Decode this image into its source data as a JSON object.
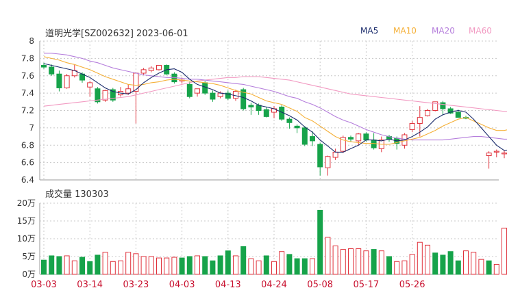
{
  "header": {
    "title": "道明光学[SZ002632] 2023-06-01"
  },
  "legend": [
    {
      "label": "MA5",
      "color": "#1a2b6b"
    },
    {
      "label": "MA10",
      "color": "#f5b038"
    },
    {
      "label": "MA20",
      "color": "#b57edc"
    },
    {
      "label": "MA60",
      "color": "#f29ac2"
    }
  ],
  "colors": {
    "up": "#e0313b",
    "down": "#16a34a",
    "grid": "#c8c8c8",
    "date": "#c8102e"
  },
  "chart_data": [
    {
      "type": "candlestick",
      "y_ticks": [
        "8",
        "7.8",
        "7.6",
        "7.4",
        "7.2",
        "7",
        "6.8",
        "6.6",
        "6.4"
      ],
      "ylim": [
        6.4,
        8.0
      ],
      "x_labels": [
        "03-03",
        "03-14",
        "03-23",
        "04-03",
        "04-13",
        "04-24",
        "05-08",
        "05-17",
        "05-26"
      ],
      "x_label_index": [
        0,
        6,
        12,
        18,
        24,
        30,
        36,
        42,
        48
      ],
      "ohlc": [
        [
          7.72,
          7.75,
          7.68,
          7.7
        ],
        [
          7.7,
          7.73,
          7.6,
          7.62
        ],
        [
          7.62,
          7.66,
          7.42,
          7.46
        ],
        [
          7.46,
          7.62,
          7.45,
          7.6
        ],
        [
          7.6,
          7.73,
          7.58,
          7.66
        ],
        [
          7.62,
          7.64,
          7.52,
          7.55
        ],
        [
          7.47,
          7.54,
          7.36,
          7.52
        ],
        [
          7.45,
          7.47,
          7.28,
          7.3
        ],
        [
          7.32,
          7.44,
          7.3,
          7.43
        ],
        [
          7.44,
          7.46,
          7.3,
          7.32
        ],
        [
          7.38,
          7.47,
          7.36,
          7.42
        ],
        [
          7.4,
          7.5,
          7.38,
          7.45
        ],
        [
          7.42,
          7.64,
          7.05,
          7.63
        ],
        [
          7.63,
          7.69,
          7.61,
          7.67
        ],
        [
          7.66,
          7.71,
          7.64,
          7.69
        ],
        [
          7.67,
          7.71,
          7.66,
          7.72
        ],
        [
          7.72,
          7.73,
          7.61,
          7.62
        ],
        [
          7.62,
          7.64,
          7.51,
          7.53
        ],
        [
          7.54,
          7.58,
          7.51,
          7.55
        ],
        [
          7.5,
          7.53,
          7.34,
          7.36
        ],
        [
          7.4,
          7.45,
          7.36,
          7.45
        ],
        [
          7.52,
          7.54,
          7.38,
          7.4
        ],
        [
          7.4,
          7.43,
          7.3,
          7.33
        ],
        [
          7.36,
          7.42,
          7.34,
          7.4
        ],
        [
          7.4,
          7.43,
          7.32,
          7.34
        ],
        [
          7.34,
          7.44,
          7.31,
          7.42
        ],
        [
          7.44,
          7.46,
          7.2,
          7.22
        ],
        [
          7.26,
          7.29,
          7.15,
          7.24
        ],
        [
          7.26,
          7.28,
          7.15,
          7.2
        ],
        [
          7.21,
          7.24,
          7.12,
          7.13
        ],
        [
          7.18,
          7.25,
          7.11,
          7.22
        ],
        [
          7.24,
          7.26,
          7.08,
          7.1
        ],
        [
          7.1,
          7.12,
          6.99,
          7.06
        ],
        [
          7.02,
          7.04,
          6.94,
          7.0
        ],
        [
          7.0,
          7.02,
          6.79,
          6.81
        ],
        [
          6.9,
          6.96,
          6.79,
          6.85
        ],
        [
          6.81,
          6.83,
          6.45,
          6.55
        ],
        [
          6.54,
          6.68,
          6.45,
          6.67
        ],
        [
          6.66,
          6.76,
          6.63,
          6.72
        ],
        [
          6.73,
          6.91,
          6.71,
          6.89
        ],
        [
          6.89,
          6.91,
          6.84,
          6.87
        ],
        [
          6.85,
          6.94,
          6.8,
          6.93
        ],
        [
          6.93,
          6.95,
          6.84,
          6.86
        ],
        [
          6.86,
          6.94,
          6.75,
          6.77
        ],
        [
          6.76,
          6.9,
          6.72,
          6.86
        ],
        [
          6.9,
          6.92,
          6.84,
          6.87
        ],
        [
          6.88,
          6.9,
          6.75,
          6.82
        ],
        [
          6.8,
          6.94,
          6.76,
          6.92
        ],
        [
          6.98,
          7.08,
          6.95,
          7.05
        ],
        [
          7.05,
          7.25,
          6.9,
          7.12
        ],
        [
          7.14,
          7.22,
          7.13,
          7.2
        ],
        [
          7.2,
          7.3,
          7.19,
          7.3
        ],
        [
          7.29,
          7.31,
          7.15,
          7.22
        ],
        [
          7.22,
          7.24,
          7.16,
          7.17
        ],
        [
          7.18,
          7.21,
          7.12,
          7.12
        ],
        [
          7.12,
          7.14,
          7.1,
          7.11
        ]
      ],
      "late_ohlc": [
        [
          6.68,
          6.73,
          6.53,
          6.71
        ],
        [
          6.72,
          6.75,
          6.66,
          6.73
        ],
        [
          6.7,
          6.74,
          6.65,
          6.71
        ],
        [
          6.73,
          7.0,
          6.63,
          6.9
        ]
      ],
      "ma5": [
        7.74,
        7.72,
        7.7,
        7.68,
        7.66,
        7.62,
        7.58,
        7.52,
        7.46,
        7.42,
        7.4,
        7.39,
        7.44,
        7.52,
        7.58,
        7.63,
        7.67,
        7.68,
        7.64,
        7.56,
        7.5,
        7.47,
        7.44,
        7.4,
        7.39,
        7.37,
        7.35,
        7.31,
        7.26,
        7.24,
        7.22,
        7.18,
        7.14,
        7.09,
        7.01,
        6.95,
        6.86,
        6.79,
        6.72,
        6.72,
        6.76,
        6.8,
        6.86,
        6.86,
        6.85,
        6.87,
        6.85,
        6.86,
        6.9,
        6.95,
        7.01,
        7.1,
        7.15,
        7.18,
        7.2,
        7.18,
        7.1,
        7.0,
        6.9,
        6.8,
        6.74,
        6.75
      ],
      "ma10": [
        7.82,
        7.8,
        7.78,
        7.75,
        7.73,
        7.7,
        7.67,
        7.63,
        7.59,
        7.56,
        7.53,
        7.5,
        7.49,
        7.5,
        7.52,
        7.53,
        7.55,
        7.56,
        7.55,
        7.54,
        7.53,
        7.52,
        7.51,
        7.49,
        7.46,
        7.43,
        7.41,
        7.39,
        7.35,
        7.31,
        7.29,
        7.27,
        7.23,
        7.19,
        7.12,
        7.08,
        7.02,
        6.96,
        6.9,
        6.86,
        6.84,
        6.83,
        6.82,
        6.82,
        6.81,
        6.81,
        6.83,
        6.85,
        6.87,
        6.89,
        6.93,
        6.97,
        7.02,
        7.06,
        7.1,
        7.12,
        7.08,
        7.04,
        7.0,
        6.97,
        6.97,
        6.99
      ],
      "ma20": [
        7.86,
        7.86,
        7.85,
        7.84,
        7.82,
        7.8,
        7.77,
        7.75,
        7.72,
        7.69,
        7.67,
        7.65,
        7.63,
        7.61,
        7.6,
        7.59,
        7.58,
        7.58,
        7.57,
        7.56,
        7.56,
        7.55,
        7.54,
        7.53,
        7.52,
        7.51,
        7.5,
        7.48,
        7.46,
        7.44,
        7.42,
        7.39,
        7.36,
        7.34,
        7.3,
        7.27,
        7.23,
        7.18,
        7.13,
        7.09,
        7.06,
        7.02,
        6.98,
        6.95,
        6.92,
        6.9,
        6.88,
        6.87,
        6.86,
        6.86,
        6.86,
        6.86,
        6.86,
        6.87,
        6.88,
        6.89,
        6.9,
        6.9,
        6.89,
        6.88,
        6.87,
        6.87
      ],
      "ma60": [
        7.25,
        7.26,
        7.27,
        7.28,
        7.29,
        7.3,
        7.31,
        7.32,
        7.33,
        7.34,
        7.35,
        7.36,
        7.38,
        7.4,
        7.42,
        7.44,
        7.46,
        7.48,
        7.5,
        7.52,
        7.54,
        7.55,
        7.56,
        7.57,
        7.58,
        7.58,
        7.59,
        7.59,
        7.59,
        7.58,
        7.57,
        7.56,
        7.55,
        7.53,
        7.51,
        7.49,
        7.47,
        7.45,
        7.43,
        7.41,
        7.39,
        7.38,
        7.37,
        7.36,
        7.35,
        7.34,
        7.33,
        7.32,
        7.31,
        7.3,
        7.29,
        7.28,
        7.27,
        7.26,
        7.25,
        7.24,
        7.23,
        7.22,
        7.21,
        7.2,
        7.19,
        7.19
      ]
    },
    {
      "type": "bar",
      "title": "成交量 130303",
      "y_ticks": [
        "20万",
        "15万",
        "10万",
        "5万",
        "0万"
      ],
      "ylim": [
        0,
        20
      ],
      "unit": "万",
      "volumes": [
        4.0,
        5.2,
        5.0,
        5.2,
        3.8,
        4.8,
        3.6,
        5.4,
        6.2,
        3.6,
        3.8,
        6.2,
        5.8,
        5.0,
        5.0,
        4.6,
        4.6,
        4.8,
        4.6,
        5.0,
        5.2,
        5.0,
        3.8,
        5.2,
        6.6,
        5.2,
        7.8,
        4.4,
        3.8,
        5.2,
        3.6,
        6.4,
        5.6,
        4.4,
        4.4,
        4.4,
        18.0,
        10.4,
        8.0,
        7.0,
        7.2,
        7.2,
        6.6,
        7.0,
        6.6,
        5.0,
        3.6,
        3.8,
        5.6,
        9.0,
        8.2,
        6.0,
        5.4,
        6.4,
        3.8,
        6.6,
        6.2,
        4.2,
        3.8,
        2.8,
        13.0
      ],
      "vol_up": [
        false,
        false,
        false,
        true,
        true,
        false,
        false,
        false,
        true,
        true,
        true,
        true,
        true,
        true,
        true,
        true,
        true,
        true,
        false,
        false,
        true,
        false,
        false,
        false,
        false,
        true,
        false,
        true,
        true,
        false,
        true,
        true,
        false,
        false,
        false,
        true,
        false,
        true,
        true,
        true,
        true,
        true,
        true,
        false,
        true,
        false,
        true,
        true,
        true,
        true,
        true,
        false,
        false,
        false,
        false,
        true,
        true,
        true,
        false,
        true,
        true
      ]
    }
  ]
}
